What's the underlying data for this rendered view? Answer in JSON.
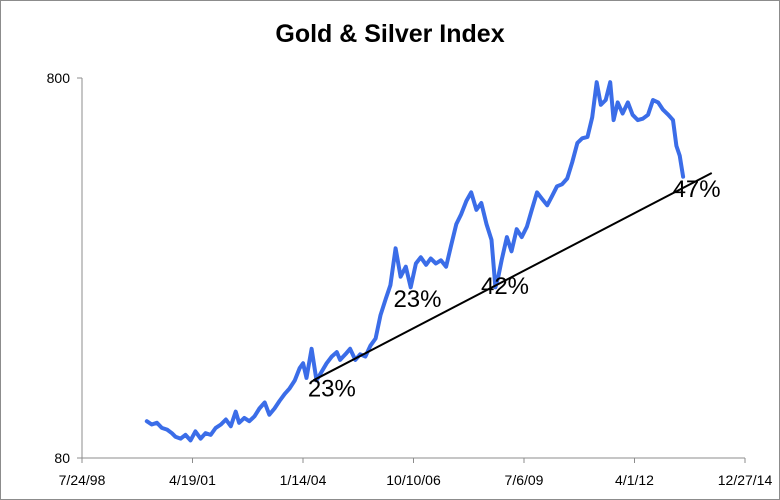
{
  "chart_data": {
    "type": "line",
    "title": "Gold & Silver Index",
    "xlabel": "",
    "ylabel": "",
    "y_scale": "log",
    "ylim": [
      80,
      800
    ],
    "xlim": [
      "1998-07-24",
      "2014-12-27"
    ],
    "y_ticks": [
      "800",
      "80"
    ],
    "x_ticks": [
      "7/24/98",
      "4/19/01",
      "1/14/04",
      "10/10/06",
      "7/6/09",
      "4/1/12",
      "12/27/14"
    ],
    "grid": false,
    "legend": "none",
    "series": [
      {
        "color": "#3b6de8",
        "points": [
          [
            "2000-03-01",
            100
          ],
          [
            "2000-04-15",
            98
          ],
          [
            "2000-06-01",
            99
          ],
          [
            "2000-07-15",
            96
          ],
          [
            "2000-09-01",
            95
          ],
          [
            "2000-10-15",
            93
          ],
          [
            "2000-11-15",
            91
          ],
          [
            "2001-01-01",
            90
          ],
          [
            "2001-02-15",
            92
          ],
          [
            "2001-04-01",
            89
          ],
          [
            "2001-05-15",
            94
          ],
          [
            "2001-07-01",
            90
          ],
          [
            "2001-08-15",
            93
          ],
          [
            "2001-10-01",
            92
          ],
          [
            "2001-11-15",
            96
          ],
          [
            "2002-01-01",
            98
          ],
          [
            "2002-02-15",
            101
          ],
          [
            "2002-04-01",
            97
          ],
          [
            "2002-05-15",
            106
          ],
          [
            "2002-06-15",
            99
          ],
          [
            "2002-08-01",
            102
          ],
          [
            "2002-09-15",
            100
          ],
          [
            "2002-11-01",
            103
          ],
          [
            "2002-12-15",
            108
          ],
          [
            "2003-02-01",
            112
          ],
          [
            "2003-03-15",
            104
          ],
          [
            "2003-05-01",
            108
          ],
          [
            "2003-06-15",
            113
          ],
          [
            "2003-08-01",
            118
          ],
          [
            "2003-09-15",
            122
          ],
          [
            "2003-11-01",
            128
          ],
          [
            "2003-12-15",
            138
          ],
          [
            "2004-01-15",
            142
          ],
          [
            "2004-02-15",
            130
          ],
          [
            "2004-04-01",
            155
          ],
          [
            "2004-05-15",
            128
          ],
          [
            "2004-07-01",
            135
          ],
          [
            "2004-08-15",
            142
          ],
          [
            "2004-10-01",
            148
          ],
          [
            "2004-11-15",
            152
          ],
          [
            "2004-12-15",
            145
          ],
          [
            "2005-02-01",
            150
          ],
          [
            "2005-03-15",
            155
          ],
          [
            "2005-05-01",
            145
          ],
          [
            "2005-06-15",
            150
          ],
          [
            "2005-08-01",
            148
          ],
          [
            "2005-09-15",
            158
          ],
          [
            "2005-11-01",
            165
          ],
          [
            "2005-12-15",
            190
          ],
          [
            "2006-02-01",
            210
          ],
          [
            "2006-03-15",
            228
          ],
          [
            "2006-05-01",
            285
          ],
          [
            "2006-06-15",
            240
          ],
          [
            "2006-08-01",
            255
          ],
          [
            "2006-09-15",
            225
          ],
          [
            "2006-11-01",
            260
          ],
          [
            "2006-12-15",
            270
          ],
          [
            "2007-02-01",
            258
          ],
          [
            "2007-03-15",
            268
          ],
          [
            "2007-05-01",
            260
          ],
          [
            "2007-06-15",
            265
          ],
          [
            "2007-08-01",
            255
          ],
          [
            "2007-09-15",
            290
          ],
          [
            "2007-11-01",
            330
          ],
          [
            "2007-12-15",
            350
          ],
          [
            "2008-02-01",
            380
          ],
          [
            "2008-03-15",
            400
          ],
          [
            "2008-05-01",
            360
          ],
          [
            "2008-06-15",
            375
          ],
          [
            "2008-08-01",
            330
          ],
          [
            "2008-09-15",
            300
          ],
          [
            "2008-10-20",
            225
          ],
          [
            "2008-11-15",
            240
          ],
          [
            "2008-12-15",
            265
          ],
          [
            "2009-02-01",
            305
          ],
          [
            "2009-03-15",
            280
          ],
          [
            "2009-05-01",
            320
          ],
          [
            "2009-06-15",
            305
          ],
          [
            "2009-08-01",
            325
          ],
          [
            "2009-09-15",
            360
          ],
          [
            "2009-11-01",
            400
          ],
          [
            "2009-12-15",
            385
          ],
          [
            "2010-02-01",
            370
          ],
          [
            "2010-03-15",
            390
          ],
          [
            "2010-05-01",
            415
          ],
          [
            "2010-06-15",
            420
          ],
          [
            "2010-08-01",
            435
          ],
          [
            "2010-09-15",
            480
          ],
          [
            "2010-11-01",
            540
          ],
          [
            "2010-12-15",
            555
          ],
          [
            "2011-02-01",
            560
          ],
          [
            "2011-03-15",
            630
          ],
          [
            "2011-04-25",
            780
          ],
          [
            "2011-06-01",
            680
          ],
          [
            "2011-07-15",
            700
          ],
          [
            "2011-08-25",
            780
          ],
          [
            "2011-09-25",
            620
          ],
          [
            "2011-11-01",
            690
          ],
          [
            "2011-12-15",
            645
          ],
          [
            "2012-02-01",
            690
          ],
          [
            "2012-03-15",
            640
          ],
          [
            "2012-05-01",
            620
          ],
          [
            "2012-06-15",
            625
          ],
          [
            "2012-08-01",
            640
          ],
          [
            "2012-09-15",
            700
          ],
          [
            "2012-11-01",
            690
          ],
          [
            "2012-12-15",
            660
          ],
          [
            "2013-02-01",
            640
          ],
          [
            "2013-03-15",
            620
          ],
          [
            "2013-04-15",
            530
          ],
          [
            "2013-05-15",
            500
          ],
          [
            "2013-06-15",
            440
          ]
        ]
      }
    ],
    "trendline": {
      "color": "#000000",
      "points": [
        [
          "2004-04-15",
          128
        ],
        [
          "2014-03-01",
          450
        ]
      ]
    },
    "annotations": [
      {
        "text": "23%",
        "x": "2004-10-01",
        "y": 116
      },
      {
        "text": "23%",
        "x": "2006-11-15",
        "y": 200
      },
      {
        "text": "42%",
        "x": "2009-01-15",
        "y": 216
      },
      {
        "text": "47%",
        "x": "2013-10-15",
        "y": 389
      }
    ]
  }
}
